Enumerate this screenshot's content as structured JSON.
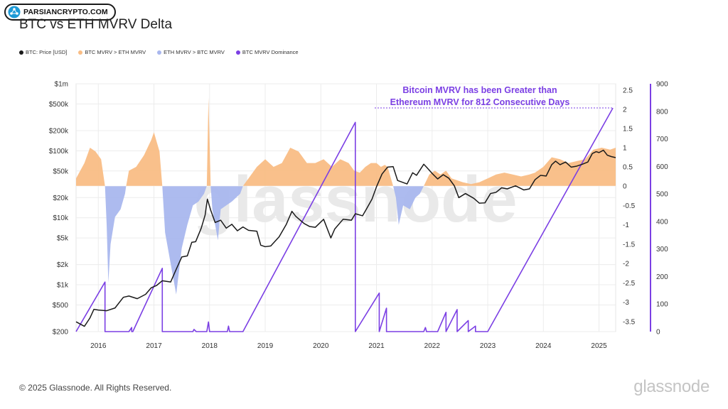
{
  "badge": {
    "text": "PARSIANCRYPTO.COM",
    "icon": "network-logo-icon"
  },
  "title": "BTC vs ETH MVRV Delta",
  "legend": [
    {
      "label": "BTC: Price [USD]",
      "color": "#1a1a1a"
    },
    {
      "label": "BTC MVRV > ETH MVRV",
      "color": "#f9bd85"
    },
    {
      "label": "ETH MVRV > BTC MVRV",
      "color": "#a9b7ee"
    },
    {
      "label": "BTC MVRV Dominance",
      "color": "#7b3fe4"
    }
  ],
  "annotation": {
    "line1": "Bitcoin MVRV has been Greater than",
    "line2": "Ethereum MVRV for 812 Consecutive Days"
  },
  "watermark": "glassnode",
  "footer": "© 2025 Glassnode. All Rights Reserved.",
  "brand": "glassnode",
  "chart_data": {
    "type": "line",
    "title": "BTC vs ETH MVRV Delta",
    "x_ticks": [
      "2016",
      "2017",
      "2018",
      "2019",
      "2020",
      "2021",
      "2022",
      "2023",
      "2024",
      "2025"
    ],
    "x_range": [
      2015.6,
      2025.3
    ],
    "price_axis": {
      "scale": "log",
      "range": [
        200,
        1000000
      ],
      "ticks": [
        200,
        500,
        1000,
        2000,
        5000,
        10000,
        20000,
        50000,
        100000,
        200000,
        500000,
        1000000
      ],
      "tick_labels": [
        "$200",
        "$500",
        "$1k",
        "$2k",
        "$5k",
        "$10k",
        "$20k",
        "$50k",
        "$100k",
        "$200k",
        "$500k",
        "$1m"
      ]
    },
    "delta_axis": {
      "range": [
        -3.8,
        2.6
      ],
      "ticks": [
        -3.5,
        -3,
        -2.5,
        -2,
        -1.5,
        -1,
        -0.5,
        0,
        0.5,
        1,
        1.5,
        2,
        2.5
      ],
      "tick_labels": [
        "-3.5",
        "-3",
        "-2.5",
        "-2",
        "-1.5",
        "-1",
        "-0.5",
        "0",
        "0.5",
        "1",
        "1.5",
        "2",
        "2.5"
      ]
    },
    "dominance_axis": {
      "range": [
        0,
        900
      ],
      "ticks": [
        0,
        100,
        200,
        300,
        400,
        500,
        600,
        700,
        800,
        900
      ],
      "tick_labels": [
        "0",
        "100",
        "200",
        "300",
        "400",
        "500",
        "600",
        "700",
        "800",
        "900"
      ]
    },
    "annotation_value": 812,
    "series": [
      {
        "name": "BTC: Price [USD]",
        "axis": "price",
        "color": "#1a1a1a",
        "points": [
          [
            2015.6,
            280
          ],
          [
            2015.75,
            240
          ],
          [
            2015.85,
            320
          ],
          [
            2015.92,
            430
          ],
          [
            2016.0,
            420
          ],
          [
            2016.15,
            410
          ],
          [
            2016.3,
            450
          ],
          [
            2016.45,
            650
          ],
          [
            2016.55,
            680
          ],
          [
            2016.7,
            620
          ],
          [
            2016.85,
            720
          ],
          [
            2016.95,
            900
          ],
          [
            2017.05,
            980
          ],
          [
            2017.15,
            1150
          ],
          [
            2017.3,
            1100
          ],
          [
            2017.4,
            1700
          ],
          [
            2017.5,
            2600
          ],
          [
            2017.6,
            2700
          ],
          [
            2017.68,
            4300
          ],
          [
            2017.75,
            4400
          ],
          [
            2017.85,
            7000
          ],
          [
            2017.92,
            11000
          ],
          [
            2017.96,
            19000
          ],
          [
            2018.02,
            13000
          ],
          [
            2018.1,
            8500
          ],
          [
            2018.2,
            9200
          ],
          [
            2018.3,
            7000
          ],
          [
            2018.4,
            8000
          ],
          [
            2018.5,
            6400
          ],
          [
            2018.6,
            7300
          ],
          [
            2018.7,
            6500
          ],
          [
            2018.85,
            6300
          ],
          [
            2018.92,
            3900
          ],
          [
            2019.0,
            3700
          ],
          [
            2019.1,
            3800
          ],
          [
            2019.25,
            5200
          ],
          [
            2019.38,
            8000
          ],
          [
            2019.48,
            12500
          ],
          [
            2019.55,
            10500
          ],
          [
            2019.7,
            8200
          ],
          [
            2019.8,
            7400
          ],
          [
            2019.9,
            7200
          ],
          [
            2020.05,
            9500
          ],
          [
            2020.18,
            5000
          ],
          [
            2020.25,
            6800
          ],
          [
            2020.4,
            9500
          ],
          [
            2020.55,
            9200
          ],
          [
            2020.62,
            11500
          ],
          [
            2020.75,
            10700
          ],
          [
            2020.82,
            13500
          ],
          [
            2020.92,
            19000
          ],
          [
            2021.0,
            29000
          ],
          [
            2021.1,
            45000
          ],
          [
            2021.2,
            57000
          ],
          [
            2021.3,
            58000
          ],
          [
            2021.38,
            36000
          ],
          [
            2021.55,
            32000
          ],
          [
            2021.65,
            47000
          ],
          [
            2021.72,
            43000
          ],
          [
            2021.85,
            63000
          ],
          [
            2021.9,
            57000
          ],
          [
            2022.0,
            46000
          ],
          [
            2022.1,
            38000
          ],
          [
            2022.2,
            44000
          ],
          [
            2022.3,
            39000
          ],
          [
            2022.4,
            30000
          ],
          [
            2022.48,
            20000
          ],
          [
            2022.6,
            23000
          ],
          [
            2022.75,
            19500
          ],
          [
            2022.85,
            16500
          ],
          [
            2022.95,
            16700
          ],
          [
            2023.05,
            23000
          ],
          [
            2023.15,
            24000
          ],
          [
            2023.25,
            28000
          ],
          [
            2023.35,
            27000
          ],
          [
            2023.5,
            30000
          ],
          [
            2023.65,
            26000
          ],
          [
            2023.75,
            27000
          ],
          [
            2023.85,
            37000
          ],
          [
            2023.95,
            43000
          ],
          [
            2024.05,
            42000
          ],
          [
            2024.15,
            62000
          ],
          [
            2024.22,
            70000
          ],
          [
            2024.3,
            62000
          ],
          [
            2024.4,
            68000
          ],
          [
            2024.5,
            57000
          ],
          [
            2024.6,
            59000
          ],
          [
            2024.7,
            63000
          ],
          [
            2024.8,
            68000
          ],
          [
            2024.88,
            91000
          ],
          [
            2024.95,
            97000
          ],
          [
            2025.0,
            94000
          ],
          [
            2025.08,
            102000
          ],
          [
            2025.15,
            86000
          ],
          [
            2025.22,
            82000
          ],
          [
            2025.3,
            79000
          ]
        ]
      },
      {
        "name": "BTC MVRV > ETH MVRV",
        "axis": "delta",
        "color": "#f9bd85",
        "points": [
          [
            2015.6,
            0.2
          ],
          [
            2015.75,
            0.6
          ],
          [
            2015.85,
            1.0
          ],
          [
            2015.95,
            0.9
          ],
          [
            2016.05,
            0.7
          ],
          [
            2016.12,
            0
          ],
          [
            2016.5,
            0
          ],
          [
            2016.55,
            0.4
          ],
          [
            2016.68,
            0.5
          ],
          [
            2016.82,
            0.8
          ],
          [
            2016.95,
            1.2
          ],
          [
            2017.0,
            1.4
          ],
          [
            2017.1,
            0.9
          ],
          [
            2017.15,
            0
          ],
          [
            2017.95,
            0
          ],
          [
            2017.98,
            2.3
          ],
          [
            2018.02,
            0
          ],
          [
            2018.6,
            0
          ],
          [
            2018.7,
            0.2
          ],
          [
            2018.85,
            0.5
          ],
          [
            2019.0,
            0.7
          ],
          [
            2019.15,
            0.5
          ],
          [
            2019.3,
            0.6
          ],
          [
            2019.45,
            1.0
          ],
          [
            2019.6,
            0.9
          ],
          [
            2019.75,
            0.6
          ],
          [
            2019.9,
            0.6
          ],
          [
            2020.05,
            0.7
          ],
          [
            2020.2,
            0.5
          ],
          [
            2020.35,
            0.7
          ],
          [
            2020.5,
            0.6
          ],
          [
            2020.6,
            0.4
          ],
          [
            2020.7,
            0.35
          ],
          [
            2020.8,
            0.5
          ],
          [
            2020.9,
            0.6
          ],
          [
            2021.0,
            0.6
          ],
          [
            2021.08,
            0.5
          ],
          [
            2021.15,
            0.55
          ],
          [
            2021.2,
            0.5
          ],
          [
            2021.3,
            0
          ],
          [
            2021.85,
            0
          ],
          [
            2021.95,
            0.3
          ],
          [
            2022.05,
            0.4
          ],
          [
            2022.15,
            0.3
          ],
          [
            2022.25,
            0.4
          ],
          [
            2022.35,
            0.2
          ],
          [
            2022.45,
            0.15
          ],
          [
            2022.55,
            0.1
          ],
          [
            2022.7,
            0.05
          ],
          [
            2022.85,
            0.1
          ],
          [
            2023.0,
            0.2
          ],
          [
            2023.15,
            0.3
          ],
          [
            2023.3,
            0.35
          ],
          [
            2023.45,
            0.3
          ],
          [
            2023.6,
            0.25
          ],
          [
            2023.75,
            0.3
          ],
          [
            2023.85,
            0.35
          ],
          [
            2024.0,
            0.5
          ],
          [
            2024.15,
            0.75
          ],
          [
            2024.3,
            0.7
          ],
          [
            2024.45,
            0.6
          ],
          [
            2024.6,
            0.65
          ],
          [
            2024.75,
            0.7
          ],
          [
            2024.9,
            0.95
          ],
          [
            2025.05,
            1.0
          ],
          [
            2025.2,
            0.95
          ],
          [
            2025.3,
            1.0
          ]
        ]
      },
      {
        "name": "ETH MVRV > BTC MVRV",
        "axis": "delta",
        "color": "#a9b7ee",
        "points": [
          [
            2016.12,
            0
          ],
          [
            2016.15,
            -1.0
          ],
          [
            2016.18,
            -2.5
          ],
          [
            2016.22,
            -1.5
          ],
          [
            2016.3,
            -0.8
          ],
          [
            2016.4,
            -0.6
          ],
          [
            2016.48,
            -0.2
          ],
          [
            2016.5,
            0
          ],
          [
            2017.15,
            0
          ],
          [
            2017.2,
            -1.2
          ],
          [
            2017.3,
            -2.0
          ],
          [
            2017.4,
            -2.8
          ],
          [
            2017.5,
            -1.6
          ],
          [
            2017.6,
            -1.0
          ],
          [
            2017.7,
            -0.5
          ],
          [
            2017.8,
            -0.4
          ],
          [
            2017.9,
            -0.2
          ],
          [
            2017.95,
            0
          ],
          [
            2018.02,
            0
          ],
          [
            2018.05,
            -0.6
          ],
          [
            2018.1,
            -1.0
          ],
          [
            2018.15,
            -1.4
          ],
          [
            2018.2,
            -0.6
          ],
          [
            2018.3,
            -0.5
          ],
          [
            2018.4,
            -0.4
          ],
          [
            2018.55,
            -0.2
          ],
          [
            2018.6,
            0
          ],
          [
            2021.3,
            0
          ],
          [
            2021.35,
            -0.3
          ],
          [
            2021.4,
            -1.0
          ],
          [
            2021.48,
            -0.5
          ],
          [
            2021.6,
            -0.6
          ],
          [
            2021.7,
            -0.3
          ],
          [
            2021.78,
            -0.2
          ],
          [
            2021.85,
            0
          ]
        ]
      },
      {
        "name": "BTC MVRV Dominance",
        "axis": "dominance",
        "color": "#7b3fe4",
        "points": [
          [
            2015.6,
            0
          ],
          [
            2016.12,
            180
          ],
          [
            2016.12,
            0
          ],
          [
            2016.55,
            0
          ],
          [
            2016.6,
            15
          ],
          [
            2016.6,
            0
          ],
          [
            2016.62,
            0
          ],
          [
            2017.15,
            230
          ],
          [
            2017.15,
            0
          ],
          [
            2017.7,
            0
          ],
          [
            2017.72,
            8
          ],
          [
            2017.76,
            0
          ],
          [
            2017.95,
            0
          ],
          [
            2017.98,
            35
          ],
          [
            2018.0,
            0
          ],
          [
            2018.32,
            0
          ],
          [
            2018.34,
            20
          ],
          [
            2018.36,
            0
          ],
          [
            2018.6,
            0
          ],
          [
            2020.62,
            760
          ],
          [
            2020.62,
            0
          ],
          [
            2021.05,
            140
          ],
          [
            2021.05,
            0
          ],
          [
            2021.18,
            85
          ],
          [
            2021.18,
            0
          ],
          [
            2021.3,
            0
          ],
          [
            2021.85,
            0
          ],
          [
            2021.88,
            15
          ],
          [
            2021.9,
            0
          ],
          [
            2022.1,
            0
          ],
          [
            2022.25,
            70
          ],
          [
            2022.25,
            0
          ],
          [
            2022.45,
            80
          ],
          [
            2022.45,
            0
          ],
          [
            2022.65,
            40
          ],
          [
            2022.65,
            0
          ],
          [
            2022.78,
            20
          ],
          [
            2022.78,
            0
          ],
          [
            2023.0,
            0
          ],
          [
            2025.25,
            812
          ]
        ]
      }
    ]
  }
}
